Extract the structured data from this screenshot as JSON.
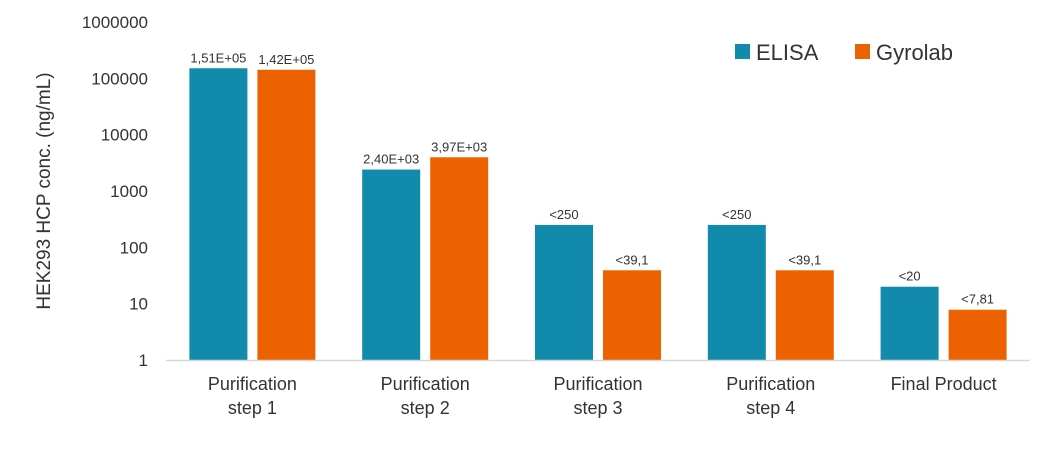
{
  "chart_data": {
    "type": "bar",
    "scale": "log",
    "ylim": [
      1,
      1000000
    ],
    "yticks": [
      "1000000",
      "100000",
      "10000",
      "1000",
      "100",
      "10",
      "1"
    ],
    "ylabel": "HEK293 HCP conc. (ng/mL)",
    "xlabel": "",
    "title": "",
    "legend_position": "top-right",
    "grid": false,
    "categories": [
      [
        "Purification",
        "step 1"
      ],
      [
        "Purification",
        "step 2"
      ],
      [
        "Purification",
        "step 3"
      ],
      [
        "Purification",
        "step 4"
      ],
      [
        "Final Product"
      ]
    ],
    "series": [
      {
        "name": "ELISA",
        "color": "#118aab",
        "values": [
          151000,
          2400,
          250,
          250,
          20
        ],
        "labels": [
          "1,51E+05",
          "2,40E+03",
          "<250",
          "<250",
          "<20"
        ]
      },
      {
        "name": "Gyrolab",
        "color": "#ec6100",
        "values": [
          142000,
          3970,
          39.1,
          39.1,
          7.81
        ],
        "labels": [
          "1,42E+05",
          "3,97E+03",
          "<39,1",
          "<39,1",
          "<7,81"
        ]
      }
    ]
  }
}
